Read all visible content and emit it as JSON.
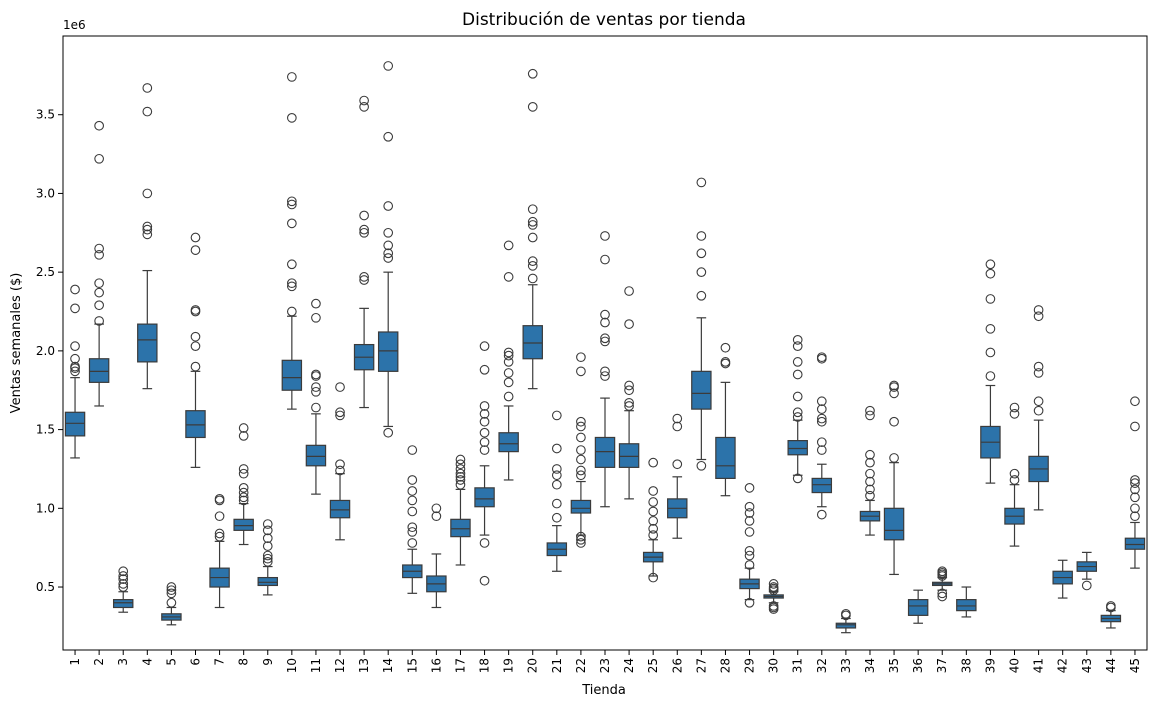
{
  "chart_data": {
    "type": "box",
    "title": "Distribución de ventas por tienda",
    "xlabel": "Tienda",
    "ylabel": "Ventas semanales ($)",
    "y_offset_label": "1e6",
    "y_scale": 1000000,
    "ylim": [
      0.1,
      4.0
    ],
    "yticks": [
      0.5,
      1.0,
      1.5,
      2.0,
      2.5,
      3.0,
      3.5
    ],
    "ytick_labels": [
      "0.5",
      "1.0",
      "1.5",
      "2.0",
      "2.5",
      "3.0",
      "3.5"
    ],
    "box_color": "#2c73aa",
    "categories": [
      "1",
      "2",
      "3",
      "4",
      "5",
      "6",
      "7",
      "8",
      "9",
      "10",
      "11",
      "12",
      "13",
      "14",
      "15",
      "16",
      "17",
      "18",
      "19",
      "20",
      "21",
      "22",
      "23",
      "24",
      "25",
      "26",
      "27",
      "28",
      "29",
      "30",
      "31",
      "32",
      "33",
      "34",
      "35",
      "36",
      "37",
      "38",
      "39",
      "40",
      "41",
      "42",
      "43",
      "44",
      "45"
    ],
    "boxes": [
      {
        "store": "1",
        "whislo": 1.32,
        "q1": 1.46,
        "med": 1.54,
        "q3": 1.61,
        "whishi": 1.83,
        "fliers": [
          1.87,
          1.89,
          1.9,
          1.95,
          2.03,
          2.27,
          2.39
        ]
      },
      {
        "store": "2",
        "whislo": 1.65,
        "q1": 1.8,
        "med": 1.87,
        "q3": 1.95,
        "whishi": 2.17,
        "fliers": [
          2.19,
          2.29,
          2.37,
          2.43,
          2.61,
          2.65,
          3.22,
          3.43
        ]
      },
      {
        "store": "3",
        "whislo": 0.34,
        "q1": 0.37,
        "med": 0.4,
        "q3": 0.42,
        "whishi": 0.47,
        "fliers": [
          0.5,
          0.52,
          0.55,
          0.57,
          0.6
        ]
      },
      {
        "store": "4",
        "whislo": 1.76,
        "q1": 1.93,
        "med": 2.07,
        "q3": 2.17,
        "whishi": 2.51,
        "fliers": [
          2.74,
          2.77,
          2.79,
          3.0,
          3.52,
          3.67
        ]
      },
      {
        "store": "5",
        "whislo": 0.26,
        "q1": 0.29,
        "med": 0.31,
        "q3": 0.33,
        "whishi": 0.37,
        "fliers": [
          0.4,
          0.46,
          0.48,
          0.5
        ]
      },
      {
        "store": "6",
        "whislo": 1.26,
        "q1": 1.45,
        "med": 1.53,
        "q3": 1.62,
        "whishi": 1.87,
        "fliers": [
          1.9,
          2.03,
          2.09,
          2.25,
          2.26,
          2.64,
          2.72
        ]
      },
      {
        "store": "7",
        "whislo": 0.37,
        "q1": 0.5,
        "med": 0.56,
        "q3": 0.62,
        "whishi": 0.79,
        "fliers": [
          0.82,
          0.84,
          0.95,
          1.05,
          1.06
        ]
      },
      {
        "store": "8",
        "whislo": 0.77,
        "q1": 0.86,
        "med": 0.89,
        "q3": 0.93,
        "whishi": 1.03,
        "fliers": [
          1.05,
          1.07,
          1.1,
          1.13,
          1.22,
          1.25,
          1.46,
          1.51
        ]
      },
      {
        "store": "9",
        "whislo": 0.45,
        "q1": 0.51,
        "med": 0.53,
        "q3": 0.56,
        "whishi": 0.63,
        "fliers": [
          0.66,
          0.68,
          0.7,
          0.76,
          0.81,
          0.86,
          0.9
        ]
      },
      {
        "store": "10",
        "whislo": 1.63,
        "q1": 1.75,
        "med": 1.83,
        "q3": 1.94,
        "whishi": 2.22,
        "fliers": [
          2.25,
          2.41,
          2.43,
          2.55,
          2.81,
          2.93,
          2.95,
          3.48,
          3.74
        ]
      },
      {
        "store": "11",
        "whislo": 1.09,
        "q1": 1.27,
        "med": 1.33,
        "q3": 1.4,
        "whishi": 1.6,
        "fliers": [
          1.64,
          1.74,
          1.77,
          1.84,
          1.85,
          2.21,
          2.3
        ]
      },
      {
        "store": "12",
        "whislo": 0.8,
        "q1": 0.94,
        "med": 0.99,
        "q3": 1.05,
        "whishi": 1.22,
        "fliers": [
          1.24,
          1.28,
          1.59,
          1.61,
          1.77
        ]
      },
      {
        "store": "13",
        "whislo": 1.64,
        "q1": 1.88,
        "med": 1.96,
        "q3": 2.04,
        "whishi": 2.27,
        "fliers": [
          2.45,
          2.47,
          2.75,
          2.77,
          2.86,
          3.55,
          3.59
        ]
      },
      {
        "store": "14",
        "whislo": 1.52,
        "q1": 1.87,
        "med": 2.0,
        "q3": 2.12,
        "whishi": 2.5,
        "fliers": [
          1.48,
          2.59,
          2.62,
          2.67,
          2.75,
          2.92,
          3.36,
          3.81
        ]
      },
      {
        "store": "15",
        "whislo": 0.46,
        "q1": 0.56,
        "med": 0.6,
        "q3": 0.64,
        "whishi": 0.74,
        "fliers": [
          0.78,
          0.85,
          0.88,
          0.98,
          1.05,
          1.11,
          1.18,
          1.37
        ]
      },
      {
        "store": "16",
        "whislo": 0.37,
        "q1": 0.47,
        "med": 0.52,
        "q3": 0.57,
        "whishi": 0.71,
        "fliers": [
          0.95,
          1.0
        ]
      },
      {
        "store": "17",
        "whislo": 0.64,
        "q1": 0.82,
        "med": 0.87,
        "q3": 0.93,
        "whishi": 1.12,
        "fliers": [
          1.15,
          1.18,
          1.2,
          1.22,
          1.25,
          1.28,
          1.31
        ]
      },
      {
        "store": "18",
        "whislo": 0.83,
        "q1": 1.01,
        "med": 1.06,
        "q3": 1.13,
        "whishi": 1.27,
        "fliers": [
          0.54,
          0.78,
          1.37,
          1.42,
          1.48,
          1.55,
          1.6,
          1.65,
          1.88,
          2.03
        ]
      },
      {
        "store": "19",
        "whislo": 1.18,
        "q1": 1.36,
        "med": 1.41,
        "q3": 1.48,
        "whishi": 1.65,
        "fliers": [
          1.71,
          1.8,
          1.86,
          1.93,
          1.97,
          1.99,
          2.47,
          2.67
        ]
      },
      {
        "store": "20",
        "whislo": 1.76,
        "q1": 1.95,
        "med": 2.05,
        "q3": 2.16,
        "whishi": 2.42,
        "fliers": [
          2.46,
          2.54,
          2.57,
          2.72,
          2.8,
          2.82,
          2.9,
          3.55,
          3.76
        ]
      },
      {
        "store": "21",
        "whislo": 0.6,
        "q1": 0.7,
        "med": 0.74,
        "q3": 0.78,
        "whishi": 0.89,
        "fliers": [
          0.94,
          1.03,
          1.15,
          1.21,
          1.25,
          1.38,
          1.59
        ]
      },
      {
        "store": "22",
        "whislo": 0.83,
        "q1": 0.97,
        "med": 1.0,
        "q3": 1.05,
        "whishi": 1.17,
        "fliers": [
          0.78,
          0.8,
          0.82,
          1.21,
          1.24,
          1.31,
          1.37,
          1.45,
          1.52,
          1.55,
          1.87,
          1.96
        ]
      },
      {
        "store": "23",
        "whislo": 1.01,
        "q1": 1.26,
        "med": 1.36,
        "q3": 1.45,
        "whishi": 1.7,
        "fliers": [
          1.84,
          1.87,
          2.06,
          2.08,
          2.18,
          2.23,
          2.58,
          2.73
        ]
      },
      {
        "store": "24",
        "whislo": 1.06,
        "q1": 1.26,
        "med": 1.33,
        "q3": 1.41,
        "whishi": 1.62,
        "fliers": [
          1.65,
          1.67,
          1.75,
          1.78,
          2.17,
          2.38
        ]
      },
      {
        "store": "25",
        "whislo": 0.57,
        "q1": 0.66,
        "med": 0.69,
        "q3": 0.72,
        "whishi": 0.8,
        "fliers": [
          0.56,
          0.83,
          0.87,
          0.92,
          0.98,
          1.04,
          1.11,
          1.29
        ]
      },
      {
        "store": "26",
        "whislo": 0.81,
        "q1": 0.94,
        "med": 1.0,
        "q3": 1.06,
        "whishi": 1.2,
        "fliers": [
          1.28,
          1.52,
          1.57
        ]
      },
      {
        "store": "27",
        "whislo": 1.31,
        "q1": 1.63,
        "med": 1.73,
        "q3": 1.87,
        "whishi": 2.21,
        "fliers": [
          1.27,
          2.35,
          2.5,
          2.62,
          2.73,
          3.07
        ]
      },
      {
        "store": "28",
        "whislo": 1.08,
        "q1": 1.19,
        "med": 1.27,
        "q3": 1.45,
        "whishi": 1.8,
        "fliers": [
          1.92,
          1.93,
          2.02
        ]
      },
      {
        "store": "29",
        "whislo": 0.42,
        "q1": 0.49,
        "med": 0.52,
        "q3": 0.55,
        "whishi": 0.62,
        "fliers": [
          0.4,
          0.64,
          0.7,
          0.73,
          0.85,
          0.92,
          0.97,
          1.01,
          1.13
        ]
      },
      {
        "store": "30",
        "whislo": 0.4,
        "q1": 0.43,
        "med": 0.44,
        "q3": 0.45,
        "whishi": 0.47,
        "fliers": [
          0.36,
          0.37,
          0.38,
          0.48,
          0.49,
          0.5,
          0.52
        ]
      },
      {
        "store": "31",
        "whislo": 1.21,
        "q1": 1.34,
        "med": 1.38,
        "q3": 1.43,
        "whishi": 1.56,
        "fliers": [
          1.19,
          1.58,
          1.61,
          1.71,
          1.85,
          1.93,
          2.03,
          2.07
        ]
      },
      {
        "store": "32",
        "whislo": 1.01,
        "q1": 1.1,
        "med": 1.15,
        "q3": 1.19,
        "whishi": 1.28,
        "fliers": [
          0.96,
          1.37,
          1.42,
          1.55,
          1.57,
          1.63,
          1.68,
          1.95,
          1.96
        ]
      },
      {
        "store": "33",
        "whislo": 0.21,
        "q1": 0.24,
        "med": 0.26,
        "q3": 0.27,
        "whishi": 0.3,
        "fliers": [
          0.32,
          0.33
        ]
      },
      {
        "store": "34",
        "whislo": 0.83,
        "q1": 0.92,
        "med": 0.95,
        "q3": 0.98,
        "whishi": 1.05,
        "fliers": [
          1.08,
          1.12,
          1.17,
          1.22,
          1.29,
          1.34,
          1.59,
          1.62
        ]
      },
      {
        "store": "35",
        "whislo": 0.58,
        "q1": 0.8,
        "med": 0.86,
        "q3": 1.0,
        "whishi": 1.29,
        "fliers": [
          1.32,
          1.55,
          1.73,
          1.77,
          1.78
        ]
      },
      {
        "store": "36",
        "whislo": 0.27,
        "q1": 0.32,
        "med": 0.38,
        "q3": 0.42,
        "whishi": 0.48,
        "fliers": []
      },
      {
        "store": "37",
        "whislo": 0.48,
        "q1": 0.51,
        "med": 0.52,
        "q3": 0.53,
        "whishi": 0.56,
        "fliers": [
          0.44,
          0.46,
          0.57,
          0.58,
          0.59,
          0.6
        ]
      },
      {
        "store": "38",
        "whislo": 0.31,
        "q1": 0.35,
        "med": 0.38,
        "q3": 0.42,
        "whishi": 0.5,
        "fliers": []
      },
      {
        "store": "39",
        "whislo": 1.16,
        "q1": 1.32,
        "med": 1.42,
        "q3": 1.52,
        "whishi": 1.78,
        "fliers": [
          1.84,
          1.99,
          2.14,
          2.33,
          2.49,
          2.55
        ]
      },
      {
        "store": "40",
        "whislo": 0.76,
        "q1": 0.9,
        "med": 0.95,
        "q3": 1.0,
        "whishi": 1.15,
        "fliers": [
          1.18,
          1.22,
          1.6,
          1.64
        ]
      },
      {
        "store": "41",
        "whislo": 0.99,
        "q1": 1.17,
        "med": 1.25,
        "q3": 1.33,
        "whishi": 1.56,
        "fliers": [
          1.62,
          1.68,
          1.86,
          1.9,
          2.22,
          2.26
        ]
      },
      {
        "store": "42",
        "whislo": 0.43,
        "q1": 0.52,
        "med": 0.56,
        "q3": 0.6,
        "whishi": 0.67,
        "fliers": []
      },
      {
        "store": "43",
        "whislo": 0.55,
        "q1": 0.6,
        "med": 0.63,
        "q3": 0.66,
        "whishi": 0.72,
        "fliers": [
          0.51
        ]
      },
      {
        "store": "44",
        "whislo": 0.24,
        "q1": 0.28,
        "med": 0.3,
        "q3": 0.32,
        "whishi": 0.35,
        "fliers": [
          0.37,
          0.38
        ]
      },
      {
        "store": "45",
        "whislo": 0.62,
        "q1": 0.74,
        "med": 0.77,
        "q3": 0.81,
        "whishi": 0.91,
        "fliers": [
          0.95,
          1.0,
          1.07,
          1.12,
          1.16,
          1.18,
          1.52,
          1.68
        ]
      }
    ]
  }
}
